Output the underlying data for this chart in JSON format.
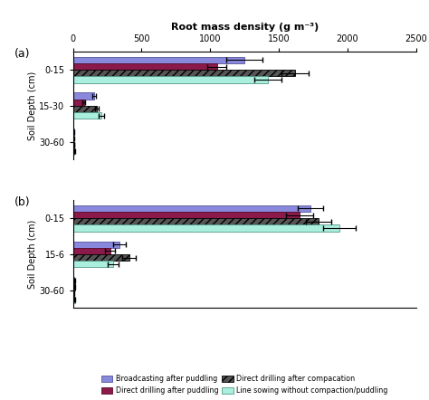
{
  "title": "Root mass density (g m⁻³)",
  "xlim": [
    0,
    2500
  ],
  "xticks": [
    0,
    500,
    1000,
    1500,
    2000,
    2500
  ],
  "panel_a": {
    "label": "(a)",
    "ylabel": "Soil Depth (cm)",
    "ytick_labels": [
      "0-15",
      "15-30",
      "30-60"
    ],
    "bars": {
      "0-15": {
        "Broadcasting after puddling": {
          "value": 1250,
          "err": 130
        },
        "Direct drilling after puddling": {
          "value": 1050,
          "err": 70
        },
        "Direct drilling after compaction": {
          "value": 1620,
          "err": 100
        },
        "Line sowing without compaction/puddling": {
          "value": 1420,
          "err": 100
        }
      },
      "15-30": {
        "Broadcasting after puddling": {
          "value": 155,
          "err": 15
        },
        "Direct drilling after puddling": {
          "value": 80,
          "err": 10
        },
        "Direct drilling after compaction": {
          "value": 175,
          "err": 15
        },
        "Line sowing without compaction/puddling": {
          "value": 210,
          "err": 20
        }
      },
      "30-60": {
        "Broadcasting after puddling": {
          "value": 8,
          "err": 2
        },
        "Direct drilling after puddling": {
          "value": 5,
          "err": 2
        },
        "Direct drilling after compaction": {
          "value": 10,
          "err": 2
        },
        "Line sowing without compaction/puddling": {
          "value": 12,
          "err": 2
        }
      }
    }
  },
  "panel_b": {
    "label": "(b)",
    "ylabel": "Soil Depth (cm)",
    "ytick_labels": [
      "0-15",
      "15-6",
      "30-60"
    ],
    "bars": {
      "0-15": {
        "Broadcasting after puddling": {
          "value": 1730,
          "err": 90
        },
        "Direct drilling after puddling": {
          "value": 1650,
          "err": 100
        },
        "Direct drilling after compaction": {
          "value": 1790,
          "err": 90
        },
        "Line sowing without compaction/puddling": {
          "value": 1940,
          "err": 120
        }
      },
      "15-6": {
        "Broadcasting after puddling": {
          "value": 340,
          "err": 45
        },
        "Direct drilling after puddling": {
          "value": 270,
          "err": 35
        },
        "Direct drilling after compaction": {
          "value": 410,
          "err": 50
        },
        "Line sowing without compaction/puddling": {
          "value": 295,
          "err": 40
        }
      },
      "30-60": {
        "Broadcasting after puddling": {
          "value": 10,
          "err": 3
        },
        "Direct drilling after puddling": {
          "value": 15,
          "err": 4
        },
        "Direct drilling after compaction": {
          "value": 7,
          "err": 2
        },
        "Line sowing without compaction/puddling": {
          "value": 13,
          "err": 3
        }
      }
    }
  },
  "series": [
    "Broadcasting after puddling",
    "Direct drilling after puddling",
    "Direct drilling after compaction",
    "Line sowing without compaction/puddling"
  ],
  "colors": [
    "#8888dd",
    "#8b1a4a",
    "#555555",
    "#aaeedd"
  ],
  "hatch": [
    null,
    null,
    "////",
    null
  ],
  "edgecolors": [
    "#555599",
    "#5a0a2a",
    "#000000",
    "#559988"
  ]
}
